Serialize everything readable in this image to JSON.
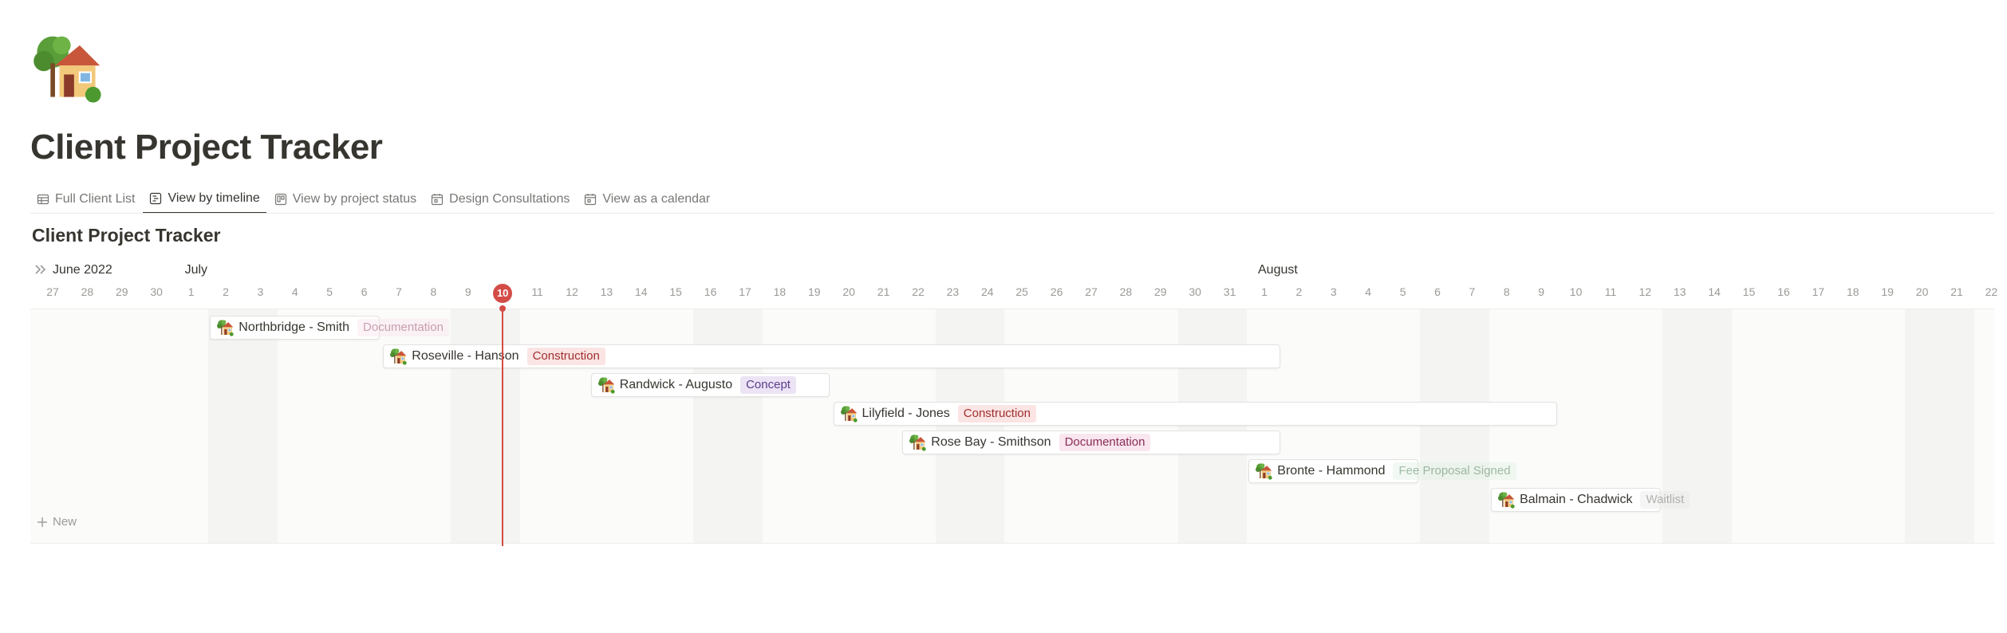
{
  "page": {
    "icon": "house-with-garden-icon",
    "title": "Client Project Tracker"
  },
  "tabs": [
    {
      "label": "Full Client List",
      "icon": "table-icon",
      "active": false
    },
    {
      "label": "View by timeline",
      "icon": "timeline-icon",
      "active": true
    },
    {
      "label": "View by project status",
      "icon": "board-icon",
      "active": false
    },
    {
      "label": "Design Consultations",
      "icon": "calendar-icon",
      "active": false
    },
    {
      "label": "View as a calendar",
      "icon": "calendar-icon",
      "active": false
    }
  ],
  "view": {
    "title": "Client Project Tracker",
    "new_label": "New"
  },
  "timeline": {
    "months": [
      {
        "label": "June 2022",
        "day_index": 0
      },
      {
        "label": "July",
        "day_index": 4
      },
      {
        "label": "August",
        "day_index": 35
      }
    ],
    "days": [
      "27",
      "28",
      "29",
      "30",
      "1",
      "2",
      "3",
      "4",
      "5",
      "6",
      "7",
      "8",
      "9",
      "10",
      "11",
      "12",
      "13",
      "14",
      "15",
      "16",
      "17",
      "18",
      "19",
      "20",
      "21",
      "22",
      "23",
      "24",
      "25",
      "26",
      "27",
      "28",
      "29",
      "30",
      "31",
      "1",
      "2",
      "3",
      "4",
      "5",
      "6",
      "7",
      "8",
      "9",
      "10",
      "11",
      "12",
      "13",
      "14",
      "15",
      "16",
      "17",
      "18",
      "19",
      "20",
      "21",
      "22"
    ],
    "today_index": 13,
    "weekend_start_indices": [
      5,
      12,
      19,
      26,
      33,
      40,
      47,
      54
    ],
    "today_color": "#d44c47"
  },
  "projects": [
    {
      "name": "Northbridge - Smith",
      "status": "Documentation",
      "status_style": "doc",
      "start_index": 5,
      "end_index": 9
    },
    {
      "name": "Roseville - Hanson",
      "status": "Construction",
      "status_style": "con",
      "start_index": 10,
      "end_index": 35
    },
    {
      "name": "Randwick - Augusto",
      "status": "Concept",
      "status_style": "concept",
      "start_index": 16,
      "end_index": 22
    },
    {
      "name": "Lilyfield - Jones",
      "status": "Construction",
      "status_style": "con",
      "start_index": 23,
      "end_index": 43
    },
    {
      "name": "Rose Bay - Smithson",
      "status": "Documentation",
      "status_style": "doc",
      "start_index": 25,
      "end_index": 35
    },
    {
      "name": "Bronte - Hammond",
      "status": "Fee Proposal Signed",
      "status_style": "fee",
      "start_index": 35,
      "end_index": 39
    },
    {
      "name": "Balmain - Chadwick",
      "status": "Waitlist",
      "status_style": "wait",
      "start_index": 42,
      "end_index": 46
    }
  ]
}
